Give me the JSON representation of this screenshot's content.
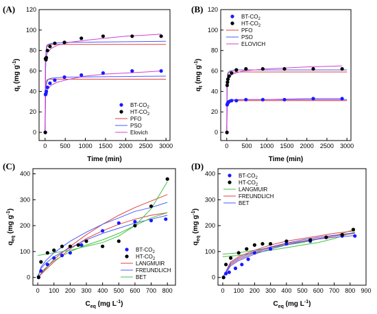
{
  "chart_data": [
    {
      "panel": "(A)",
      "type": "scatter",
      "xlabel_main": "Time (min)",
      "ylabel_main": "q",
      "ylabel_sub": "t",
      "ylabel_unit": " (mg g",
      "ylabel_sup": "-1",
      "ylabel_end": ")",
      "xlim": [
        -150,
        3100
      ],
      "ylim": [
        -8,
        120
      ],
      "xticks": [
        0,
        500,
        1000,
        1500,
        2000,
        2500,
        3000
      ],
      "yticks": [
        0,
        20,
        40,
        60,
        80,
        100,
        120
      ],
      "legend_position": "bottom-right",
      "scatter": [
        {
          "name": "BT-CO",
          "sub": "2",
          "color": "#1a1aff",
          "x": [
            5,
            10,
            20,
            30,
            60,
            120,
            240,
            480,
            900,
            1440,
            2160,
            2880
          ],
          "y": [
            0,
            37,
            38,
            40,
            44,
            48,
            51,
            54,
            56,
            58,
            60,
            60
          ]
        },
        {
          "name": "HT-CO",
          "sub": "2",
          "color": "#000000",
          "x": [
            5,
            10,
            20,
            30,
            60,
            120,
            240,
            480,
            900,
            1440,
            2160,
            2880
          ],
          "y": [
            0,
            72,
            71,
            73,
            80,
            84,
            87,
            88,
            92,
            94,
            94,
            94
          ]
        }
      ],
      "fits": [
        {
          "name": "PFO",
          "color": "#e04040",
          "curves": [
            {
              "x": [
                0,
                10,
                20,
                40,
                80,
                160,
                3000
              ],
              "y": [
                0,
                35,
                46,
                51,
                52,
                52,
                52
              ]
            },
            {
              "x": [
                0,
                10,
                20,
                40,
                80,
                160,
                3000
              ],
              "y": [
                0,
                60,
                79,
                85,
                86,
                86,
                86
              ]
            }
          ]
        },
        {
          "name": "PSO",
          "color": "#4a5bff",
          "curves": [
            {
              "x": [
                0,
                10,
                20,
                40,
                80,
                160,
                500,
                3000
              ],
              "y": [
                0,
                33,
                44,
                49,
                52,
                53,
                54,
                55
              ]
            },
            {
              "x": [
                0,
                10,
                20,
                40,
                80,
                160,
                500,
                3000
              ],
              "y": [
                0,
                58,
                76,
                83,
                86,
                87,
                88,
                89
              ]
            }
          ]
        },
        {
          "name": "Elovich",
          "color": "#d040d0",
          "curves": [
            {
              "x": [
                0,
                5,
                20,
                60,
                150,
                300,
                600,
                1000,
                1500,
                2000,
                2500,
                2880
              ],
              "y": [
                0,
                33,
                38,
                42,
                46,
                49,
                52,
                55,
                57,
                58,
                59,
                60
              ]
            },
            {
              "x": [
                0,
                5,
                20,
                60,
                150,
                300,
                600,
                1000,
                1500,
                2000,
                2500,
                2880
              ],
              "y": [
                0,
                68,
                73,
                78,
                82,
                85,
                88,
                90,
                92,
                94,
                95,
                96
              ]
            }
          ]
        }
      ]
    },
    {
      "panel": "(B)",
      "type": "scatter",
      "xlabel_main": "Time (min)",
      "ylabel_main": "q",
      "ylabel_sub": "t",
      "ylabel_unit": " (mg g",
      "ylabel_sup": "-1",
      "ylabel_end": ")",
      "xlim": [
        -150,
        3100
      ],
      "ylim": [
        -8,
        120
      ],
      "xticks": [
        0,
        500,
        1000,
        1500,
        2000,
        2500,
        3000
      ],
      "yticks": [
        0,
        20,
        40,
        60,
        80,
        100,
        120
      ],
      "legend_position": "top-left",
      "scatter": [
        {
          "name": "BT-CO",
          "sub": "2",
          "color": "#1a1aff",
          "x": [
            5,
            10,
            20,
            30,
            60,
            120,
            240,
            480,
            900,
            1440,
            2160,
            2880
          ],
          "y": [
            0,
            27,
            28,
            29,
            30,
            31,
            31,
            32,
            32,
            32,
            33,
            33
          ]
        },
        {
          "name": "HT-CO",
          "sub": "2",
          "color": "#000000",
          "x": [
            5,
            10,
            20,
            30,
            60,
            120,
            240,
            480,
            900,
            1440,
            2160,
            2880
          ],
          "y": [
            0,
            46,
            49,
            52,
            55,
            58,
            61,
            62,
            62,
            62,
            62,
            62
          ]
        }
      ],
      "fits": [
        {
          "name": "PFO",
          "color": "#e04040",
          "curves": [
            {
              "x": [
                0,
                10,
                20,
                40,
                80,
                3000
              ],
              "y": [
                0,
                27,
                31,
                31,
                31,
                31
              ]
            },
            {
              "x": [
                0,
                10,
                20,
                40,
                80,
                3000
              ],
              "y": [
                0,
                48,
                57,
                59,
                59,
                59
              ]
            }
          ]
        },
        {
          "name": "PSO",
          "color": "#4a5bff",
          "curves": [
            {
              "x": [
                0,
                10,
                20,
                40,
                80,
                200,
                3000
              ],
              "y": [
                0,
                26,
                30,
                31,
                32,
                32,
                32
              ]
            },
            {
              "x": [
                0,
                10,
                20,
                40,
                80,
                200,
                3000
              ],
              "y": [
                0,
                47,
                55,
                58,
                60,
                61,
                61
              ]
            }
          ]
        },
        {
          "name": "ELOVICH",
          "color": "#d040d0",
          "curves": [
            {
              "x": [
                0,
                5,
                20,
                60,
                150,
                400,
                1000,
                2000,
                2880
              ],
              "y": [
                0,
                26,
                28,
                30,
                31,
                32,
                32,
                33,
                33
              ]
            },
            {
              "x": [
                0,
                5,
                20,
                60,
                150,
                400,
                1000,
                2000,
                2880
              ],
              "y": [
                0,
                45,
                50,
                54,
                57,
                60,
                62,
                64,
                65
              ]
            }
          ]
        }
      ]
    },
    {
      "panel": "(C)",
      "type": "scatter",
      "xlabel_main": "C",
      "xlabel_sub": "eq",
      "xlabel_unit": " (mg L",
      "xlabel_sup": "-1",
      "xlabel_end": ")",
      "ylabel_main": "q",
      "ylabel_sub": "eq",
      "ylabel_unit": " (mg g",
      "ylabel_sup": "-1",
      "ylabel_end": ")",
      "xlim": [
        -30,
        850
      ],
      "ylim": [
        -30,
        420
      ],
      "xticks": [
        0,
        100,
        200,
        300,
        400,
        500,
        600,
        700,
        800
      ],
      "yticks": [
        0,
        100,
        200,
        300,
        400
      ],
      "legend_position": "bottom-right",
      "scatter": [
        {
          "name": "BT-CO",
          "sub": "2",
          "color": "#1a1aff",
          "x": [
            5,
            20,
            60,
            100,
            150,
            200,
            270,
            400,
            500,
            600,
            700,
            790
          ],
          "y": [
            2,
            25,
            50,
            75,
            85,
            95,
            125,
            180,
            210,
            215,
            220,
            225
          ]
        },
        {
          "name": "HT-CO",
          "sub": "2",
          "color": "#000000",
          "x": [
            5,
            20,
            60,
            100,
            150,
            200,
            250,
            300,
            400,
            500,
            600,
            700,
            800
          ],
          "y": [
            0,
            60,
            95,
            105,
            120,
            120,
            125,
            140,
            120,
            140,
            200,
            275,
            380
          ]
        }
      ],
      "fits": [
        {
          "name": "LANGMUIR",
          "color": "#e04040",
          "curves": [
            {
              "x": [
                0,
                100,
                200,
                300,
                400,
                500,
                600,
                700,
                800
              ],
              "y": [
                0,
                60,
                110,
                150,
                180,
                205,
                225,
                240,
                250
              ]
            },
            {
              "x": [
                0,
                100,
                200,
                300,
                400,
                500,
                600,
                700,
                800
              ],
              "y": [
                0,
                70,
                120,
                165,
                205,
                240,
                270,
                295,
                320
              ]
            }
          ]
        },
        {
          "name": "FREUNDLICH",
          "color": "#4a5bff",
          "curves": [
            {
              "x": [
                0,
                20,
                50,
                100,
                200,
                300,
                400,
                500,
                600,
                700,
                800
              ],
              "y": [
                0,
                35,
                55,
                80,
                115,
                145,
                170,
                190,
                210,
                225,
                240
              ]
            },
            {
              "x": [
                0,
                20,
                50,
                100,
                200,
                300,
                400,
                500,
                600,
                700,
                800
              ],
              "y": [
                0,
                40,
                65,
                95,
                140,
                175,
                205,
                230,
                255,
                270,
                290
              ]
            }
          ]
        },
        {
          "name": "BET",
          "color": "#40c040",
          "curves": [
            {
              "x": [
                0,
                100,
                200,
                300,
                400,
                500,
                600,
                700,
                800
              ],
              "y": [
                10,
                65,
                100,
                125,
                145,
                170,
                200,
                230,
                250
              ]
            },
            {
              "x": [
                0,
                100,
                200,
                300,
                400,
                500,
                600,
                700,
                800
              ],
              "y": [
                85,
                95,
                105,
                120,
                135,
                160,
                200,
                265,
                370
              ]
            }
          ]
        }
      ]
    },
    {
      "panel": "(D)",
      "type": "scatter",
      "xlabel_main": "C",
      "xlabel_sub": "eq",
      "xlabel_unit": " (mg L",
      "xlabel_sup": "-1",
      "xlabel_end": ")",
      "ylabel_main": "q",
      "ylabel_sub": "eq",
      "ylabel_unit": " (mg g",
      "ylabel_sup": "-1",
      "ylabel_end": ")",
      "xlim": [
        -30,
        900
      ],
      "ylim": [
        -30,
        420
      ],
      "xticks": [
        0,
        100,
        200,
        300,
        400,
        500,
        600,
        700,
        800,
        900
      ],
      "yticks": [
        0,
        100,
        200,
        300,
        400
      ],
      "legend_position": "top-left",
      "scatter": [
        {
          "name": "BT-CO",
          "sub": "2",
          "color": "#1a1aff",
          "x": [
            5,
            20,
            40,
            80,
            120,
            160,
            200,
            300,
            400,
            550,
            650,
            750,
            830
          ],
          "y": [
            0,
            15,
            20,
            35,
            50,
            70,
            95,
            110,
            130,
            140,
            155,
            160,
            160
          ]
        },
        {
          "name": "HT-CO",
          "sub": "2",
          "color": "#000000",
          "x": [
            5,
            20,
            50,
            100,
            150,
            200,
            250,
            300,
            400,
            550,
            650,
            750,
            820
          ],
          "y": [
            0,
            50,
            75,
            95,
            110,
            125,
            130,
            130,
            140,
            145,
            155,
            165,
            185
          ]
        }
      ],
      "fits": [
        {
          "name": "LANGMUIR",
          "color": "#40c040",
          "curves": [
            {
              "x": [
                0,
                100,
                200,
                300,
                400,
                500,
                600,
                700,
                800,
                830
              ],
              "y": [
                80,
                85,
                95,
                105,
                115,
                125,
                135,
                150,
                170,
                175
              ]
            },
            {
              "x": [
                0,
                100,
                200,
                300,
                400,
                500,
                600,
                700,
                800,
                830
              ],
              "y": [
                90,
                95,
                105,
                115,
                125,
                135,
                148,
                160,
                180,
                190
              ]
            }
          ]
        },
        {
          "name": "FREUNDLICH",
          "color": "#e04040",
          "curves": [
            {
              "x": [
                0,
                50,
                100,
                200,
                300,
                400,
                500,
                600,
                700,
                830
              ],
              "y": [
                0,
                50,
                70,
                95,
                115,
                130,
                140,
                150,
                160,
                170
              ]
            },
            {
              "x": [
                0,
                50,
                100,
                200,
                300,
                400,
                500,
                600,
                700,
                830
              ],
              "y": [
                0,
                60,
                80,
                105,
                125,
                140,
                150,
                160,
                170,
                180
              ]
            }
          ]
        },
        {
          "name": "BET",
          "color": "#4a5bff",
          "curves": [
            {
              "x": [
                0,
                50,
                100,
                200,
                300,
                400,
                500,
                600,
                700,
                830
              ],
              "y": [
                0,
                45,
                65,
                90,
                110,
                125,
                138,
                148,
                155,
                162
              ]
            },
            {
              "x": [
                0,
                50,
                100,
                200,
                300,
                400,
                500,
                600,
                700,
                830
              ],
              "y": [
                0,
                55,
                75,
                100,
                118,
                132,
                145,
                155,
                163,
                172
              ]
            }
          ]
        }
      ]
    }
  ]
}
